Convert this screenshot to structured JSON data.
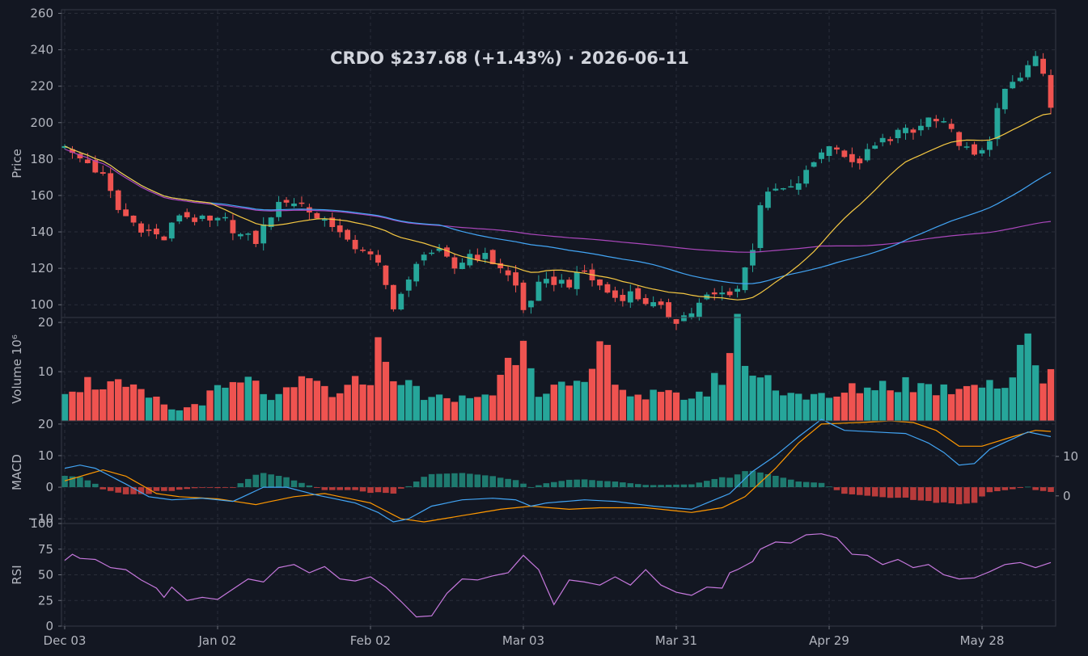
{
  "chart_data": {
    "type": "candlestick",
    "title": "CRDO   $237.68   (+1.43%)   ·   2026-06-11",
    "x_tick_labels": [
      "Dec 03",
      "Jan 02",
      "Feb 02",
      "Mar 03",
      "Mar 31",
      "Apr 29",
      "May 28"
    ],
    "x_tick_indices": [
      0,
      20,
      40,
      60,
      80,
      100,
      120
    ],
    "bar_count": 130,
    "grid": true,
    "panels": {
      "price": {
        "ylabel": "Price",
        "ylim": [
          93,
          262
        ],
        "yticks": [
          100,
          120,
          140,
          160,
          180,
          200,
          220,
          240,
          260
        ]
      },
      "volume": {
        "ylabel": "Volume  10⁶",
        "ylim": [
          0,
          21
        ],
        "yticks": [
          10,
          20
        ]
      },
      "macd": {
        "ylabel": "MACD",
        "ylim": [
          -11.5,
          21
        ],
        "yticks": [
          -10,
          0,
          10,
          20
        ],
        "ylim_right": [
          -7,
          19
        ],
        "yticks_right": [
          0,
          10
        ]
      },
      "rsi": {
        "ylabel": "RSI",
        "ylim": [
          0,
          100
        ],
        "yticks": [
          0,
          25,
          50,
          75,
          100
        ]
      }
    },
    "close_anchors": [
      [
        0,
        189
      ],
      [
        1,
        182
      ],
      [
        3,
        178
      ],
      [
        5,
        170
      ],
      [
        7,
        152
      ],
      [
        9,
        145
      ],
      [
        11,
        140
      ],
      [
        13,
        136
      ],
      [
        15,
        150
      ],
      [
        17,
        147
      ],
      [
        19,
        145
      ],
      [
        21,
        146
      ],
      [
        23,
        138
      ],
      [
        25,
        135
      ],
      [
        27,
        150
      ],
      [
        29,
        158
      ],
      [
        31,
        155
      ],
      [
        33,
        148
      ],
      [
        35,
        145
      ],
      [
        37,
        133
      ],
      [
        39,
        131
      ],
      [
        41,
        121
      ],
      [
        42,
        110
      ],
      [
        43,
        100
      ],
      [
        45,
        112
      ],
      [
        47,
        130
      ],
      [
        49,
        128
      ],
      [
        51,
        120
      ],
      [
        53,
        128
      ],
      [
        55,
        126
      ],
      [
        57,
        121
      ],
      [
        59,
        110
      ],
      [
        60,
        97
      ],
      [
        62,
        110
      ],
      [
        64,
        113
      ],
      [
        66,
        112
      ],
      [
        68,
        118
      ],
      [
        70,
        110
      ],
      [
        72,
        104
      ],
      [
        74,
        106
      ],
      [
        76,
        102
      ],
      [
        78,
        97
      ],
      [
        80,
        92
      ],
      [
        82,
        96
      ],
      [
        84,
        104
      ],
      [
        86,
        106
      ],
      [
        88,
        109
      ],
      [
        89,
        120
      ],
      [
        90,
        132
      ],
      [
        91,
        156
      ],
      [
        93,
        163
      ],
      [
        95,
        163
      ],
      [
        97,
        172
      ],
      [
        99,
        185
      ],
      [
        101,
        188
      ],
      [
        103,
        176
      ],
      [
        105,
        183
      ],
      [
        107,
        190
      ],
      [
        109,
        195
      ],
      [
        111,
        194
      ],
      [
        113,
        202
      ],
      [
        115,
        198
      ],
      [
        117,
        190
      ],
      [
        119,
        180
      ],
      [
        121,
        192
      ],
      [
        123,
        218
      ],
      [
        125,
        224
      ],
      [
        127,
        236
      ],
      [
        128,
        228
      ],
      [
        129,
        210
      ],
      [
        130,
        221
      ],
      [
        131,
        232
      ],
      [
        132,
        238
      ]
    ],
    "volume_anchors": [
      [
        0,
        7.5
      ],
      [
        5,
        8
      ],
      [
        10,
        5.5
      ],
      [
        15,
        2
      ],
      [
        20,
        6
      ],
      [
        24,
        8
      ],
      [
        28,
        4.5
      ],
      [
        32,
        8.5
      ],
      [
        36,
        5
      ],
      [
        40,
        10
      ],
      [
        41,
        14.5
      ],
      [
        45,
        7
      ],
      [
        50,
        4
      ],
      [
        56,
        6
      ],
      [
        58,
        12
      ],
      [
        60,
        19.5
      ],
      [
        62,
        7
      ],
      [
        68,
        6.5
      ],
      [
        70,
        15.5
      ],
      [
        74,
        5.5
      ],
      [
        80,
        5
      ],
      [
        84,
        6
      ],
      [
        86,
        10
      ],
      [
        88,
        18.5
      ],
      [
        90,
        10
      ],
      [
        95,
        6
      ],
      [
        100,
        4.5
      ],
      [
        104,
        7
      ],
      [
        110,
        8
      ],
      [
        115,
        6.5
      ],
      [
        120,
        9
      ],
      [
        123,
        7
      ],
      [
        125,
        13
      ],
      [
        126,
        16
      ],
      [
        128,
        9
      ],
      [
        130,
        15.5
      ],
      [
        132,
        14
      ]
    ],
    "macd_anchors": [
      [
        0,
        6
      ],
      [
        2,
        7
      ],
      [
        4,
        6
      ],
      [
        8,
        1
      ],
      [
        11,
        -3
      ],
      [
        14,
        -4
      ],
      [
        18,
        -3.5
      ],
      [
        22,
        -4.5
      ],
      [
        26,
        0
      ],
      [
        29,
        0
      ],
      [
        33,
        -2.5
      ],
      [
        38,
        -5
      ],
      [
        41,
        -8
      ],
      [
        43,
        -11
      ],
      [
        45,
        -10
      ],
      [
        48,
        -6
      ],
      [
        52,
        -4
      ],
      [
        56,
        -3.5
      ],
      [
        59,
        -4
      ],
      [
        61,
        -6
      ],
      [
        63,
        -5
      ],
      [
        68,
        -4
      ],
      [
        72,
        -4.5
      ],
      [
        77,
        -6
      ],
      [
        82,
        -7
      ],
      [
        87,
        -2
      ],
      [
        90,
        5
      ],
      [
        93,
        10
      ],
      [
        96,
        16
      ],
      [
        99,
        21.5
      ],
      [
        102,
        18
      ],
      [
        106,
        17.5
      ],
      [
        110,
        17
      ],
      [
        113,
        14
      ],
      [
        115,
        11
      ],
      [
        117,
        7
      ],
      [
        119,
        7.5
      ],
      [
        121,
        12
      ],
      [
        126,
        17.5
      ],
      [
        129,
        16
      ],
      [
        131,
        13
      ],
      [
        133,
        14.5
      ]
    ],
    "signal_anchors": [
      [
        0,
        2
      ],
      [
        5,
        5.5
      ],
      [
        8,
        3.5
      ],
      [
        12,
        -2
      ],
      [
        15,
        -3
      ],
      [
        20,
        -3.7
      ],
      [
        25,
        -5.5
      ],
      [
        30,
        -3
      ],
      [
        34,
        -2
      ],
      [
        40,
        -5
      ],
      [
        44,
        -10
      ],
      [
        47,
        -11
      ],
      [
        52,
        -9
      ],
      [
        57,
        -7
      ],
      [
        61,
        -6
      ],
      [
        66,
        -7
      ],
      [
        70,
        -6.5
      ],
      [
        76,
        -6.5
      ],
      [
        82,
        -8
      ],
      [
        86,
        -6.5
      ],
      [
        89,
        -3
      ],
      [
        93,
        6
      ],
      [
        96,
        14
      ],
      [
        99,
        20
      ],
      [
        104,
        20.5
      ],
      [
        108,
        21
      ],
      [
        111,
        20.5
      ],
      [
        114,
        18
      ],
      [
        117,
        13
      ],
      [
        120,
        13
      ],
      [
        124,
        16
      ],
      [
        127,
        18
      ],
      [
        130,
        17.5
      ],
      [
        133,
        17.5
      ]
    ],
    "rsi_anchors": [
      [
        0,
        64
      ],
      [
        1,
        70
      ],
      [
        2,
        66
      ],
      [
        4,
        65
      ],
      [
        6,
        57
      ],
      [
        8,
        55
      ],
      [
        10,
        45
      ],
      [
        12,
        37
      ],
      [
        13,
        28
      ],
      [
        14,
        38
      ],
      [
        16,
        25
      ],
      [
        18,
        28
      ],
      [
        20,
        26
      ],
      [
        22,
        36
      ],
      [
        24,
        46
      ],
      [
        26,
        43
      ],
      [
        28,
        57
      ],
      [
        30,
        60
      ],
      [
        32,
        52
      ],
      [
        34,
        58
      ],
      [
        36,
        46
      ],
      [
        38,
        44
      ],
      [
        40,
        48
      ],
      [
        42,
        38
      ],
      [
        44,
        24
      ],
      [
        46,
        9
      ],
      [
        48,
        10
      ],
      [
        50,
        32
      ],
      [
        52,
        46
      ],
      [
        54,
        45
      ],
      [
        56,
        49
      ],
      [
        58,
        52
      ],
      [
        60,
        69
      ],
      [
        62,
        55
      ],
      [
        64,
        21
      ],
      [
        66,
        45
      ],
      [
        68,
        43
      ],
      [
        70,
        40
      ],
      [
        72,
        48
      ],
      [
        74,
        40
      ],
      [
        76,
        55
      ],
      [
        78,
        40
      ],
      [
        80,
        33
      ],
      [
        82,
        30
      ],
      [
        84,
        38
      ],
      [
        86,
        37
      ],
      [
        87,
        52
      ],
      [
        88,
        55
      ],
      [
        90,
        63
      ],
      [
        91,
        75
      ],
      [
        93,
        82
      ],
      [
        95,
        81
      ],
      [
        97,
        89
      ],
      [
        99,
        90
      ],
      [
        101,
        86
      ],
      [
        103,
        70
      ],
      [
        105,
        69
      ],
      [
        107,
        60
      ],
      [
        109,
        65
      ],
      [
        111,
        57
      ],
      [
        113,
        60
      ],
      [
        115,
        50
      ],
      [
        117,
        46
      ],
      [
        119,
        47
      ],
      [
        121,
        53
      ],
      [
        123,
        60
      ],
      [
        125,
        62
      ],
      [
        127,
        57
      ],
      [
        129,
        62
      ],
      [
        131,
        63
      ],
      [
        132,
        75
      ],
      [
        133,
        72
      ]
    ],
    "colors": {
      "background": "#131722",
      "grid": "#2a2e39",
      "text": "#b2b5be",
      "up": "#26a69a",
      "down": "#ef5350",
      "ma_fast": "#f5c842",
      "ma_mid": "#42a5f5",
      "ma_slow": "#ab47bc",
      "macd_line": "#42a5f5",
      "signal_line": "#ff9800",
      "hist_up": "#1e7a6f",
      "hist_down": "#b83b3b",
      "rsi_line": "#c678dd"
    }
  }
}
